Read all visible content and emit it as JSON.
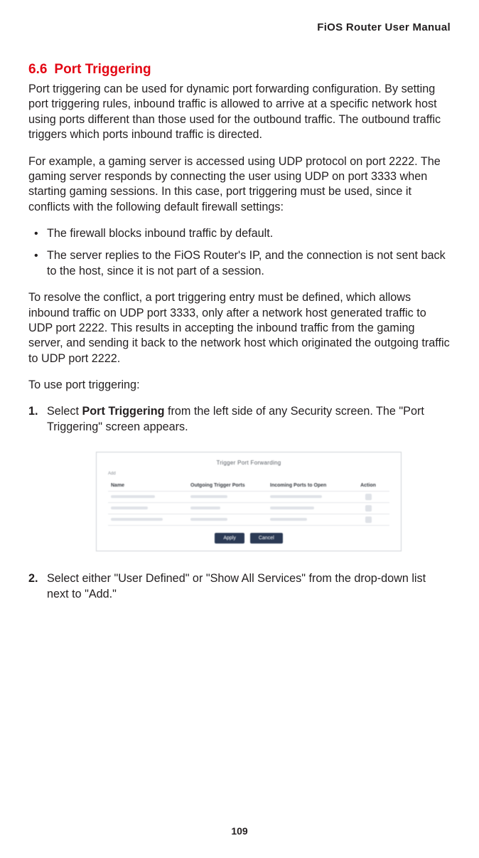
{
  "header": {
    "brand": "FiOS Router User Manual"
  },
  "section": {
    "number": "6.6",
    "title": "Port Triggering"
  },
  "paragraphs": {
    "intro": "Port triggering can be used for dynamic port forwarding configuration. By setting port triggering rules, inbound traffic is allowed to arrive at a specific network host using ports different than those used for the outbound traffic. The outbound traffic triggers which ports inbound traffic is directed.",
    "example": "For example, a gaming server is accessed using UDP protocol on port 2222. The gaming server responds by connecting the user using UDP on port 3333 when starting gaming sessions. In this case, port triggering must be used, since it conflicts with the following default firewall settings:",
    "resolve": "To resolve the conflict, a port triggering entry must be defined, which allows inbound traffic on UDP port 3333, only after a network host generated traffic to UDP port 2222. This results in accepting the inbound traffic from the gaming server, and sending it back to the network host which originated the outgoing traffic to UDP port 2222.",
    "use": "To use port triggering:"
  },
  "bullets": {
    "b1": "The firewall blocks inbound traffic by default.",
    "b2": "The server replies to the FiOS Router's IP, and the connection is not sent back to the host, since it is not part of a session."
  },
  "steps": {
    "s1_num": "1.",
    "s1_pre": "Select ",
    "s1_bold": "Port Triggering",
    "s1_post": " from the left side of any Security screen. The \"Port Triggering\" screen appears.",
    "s2_num": "2.",
    "s2": "Select either \"User Defined\" or \"Show All Services\" from the drop-down list next to \"Add.\""
  },
  "figure": {
    "title": "Trigger Port Forwarding",
    "hint": "Add",
    "columns": {
      "c1": "Name",
      "c2": "Outgoing Trigger Ports",
      "c3": "Incoming Ports to Open",
      "c4": "Action"
    },
    "buttons": {
      "apply": "Apply",
      "cancel": "Cancel"
    }
  },
  "page_number": "109",
  "colors": {
    "heading": "#e30613",
    "text": "#231f20",
    "figure_border": "#cfd3d8",
    "button_bg": "#2b3a55"
  }
}
